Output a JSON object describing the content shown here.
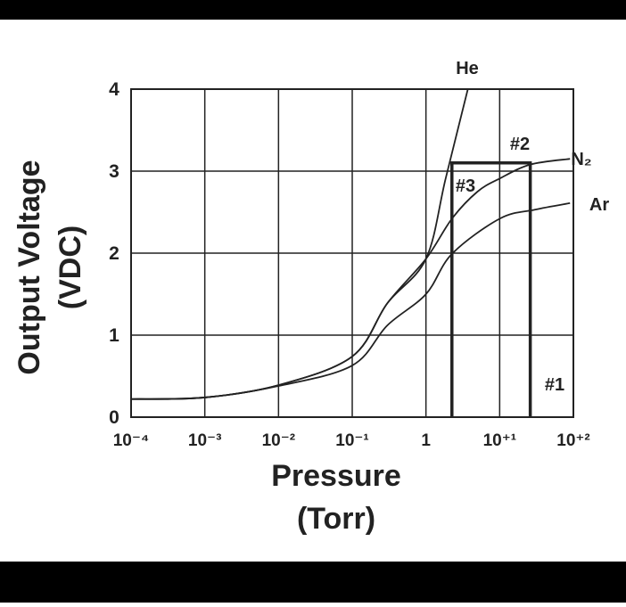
{
  "chart_data": {
    "type": "line",
    "x_label": [
      "Pressure",
      "(Torr)"
    ],
    "y_label": [
      "Output Voltage",
      "(VDC)"
    ],
    "x_scale": "log",
    "xlim": [
      0.0001,
      100
    ],
    "ylim": [
      0,
      4
    ],
    "xticks": [
      {
        "value": 0.0001,
        "label": "10⁻⁴"
      },
      {
        "value": 0.001,
        "label": "10⁻³"
      },
      {
        "value": 0.01,
        "label": "10⁻²"
      },
      {
        "value": 0.1,
        "label": "10⁻¹"
      },
      1,
      {
        "value": 10,
        "label": "10⁺¹"
      },
      {
        "value": 100,
        "label": "10⁺²"
      }
    ],
    "yticks": [
      0,
      1,
      2,
      3,
      4
    ],
    "grid": true,
    "series": [
      {
        "name": "He",
        "color": "#222222",
        "x": [
          0.0001,
          0.001,
          0.01,
          0.1,
          0.3,
          1,
          1.85,
          3.7
        ],
        "values": [
          0.22,
          0.24,
          0.39,
          0.74,
          1.39,
          1.93,
          2.91,
          4
        ]
      },
      {
        "name": "N₂",
        "color": "#222222",
        "x": [
          0.0001,
          0.001,
          0.01,
          0.1,
          0.3,
          1,
          2.25,
          5,
          10,
          26,
          90
        ],
        "values": [
          0.22,
          0.24,
          0.39,
          0.74,
          1.39,
          1.93,
          2.42,
          2.75,
          2.91,
          3.08,
          3.15
        ]
      },
      {
        "name": "Ar",
        "color": "#222222",
        "x": [
          0.0001,
          0.001,
          0.01,
          0.1,
          0.3,
          1,
          2.25,
          10,
          30,
          90
        ],
        "values": [
          0.22,
          0.24,
          0.38,
          0.63,
          1.12,
          1.5,
          1.99,
          2.42,
          2.53,
          2.61
        ]
      }
    ],
    "highlight": {
      "x0": 2.25,
      "x1": 26,
      "y": 3.1
    },
    "annotations": [
      "#1",
      "#2",
      "#3"
    ]
  }
}
